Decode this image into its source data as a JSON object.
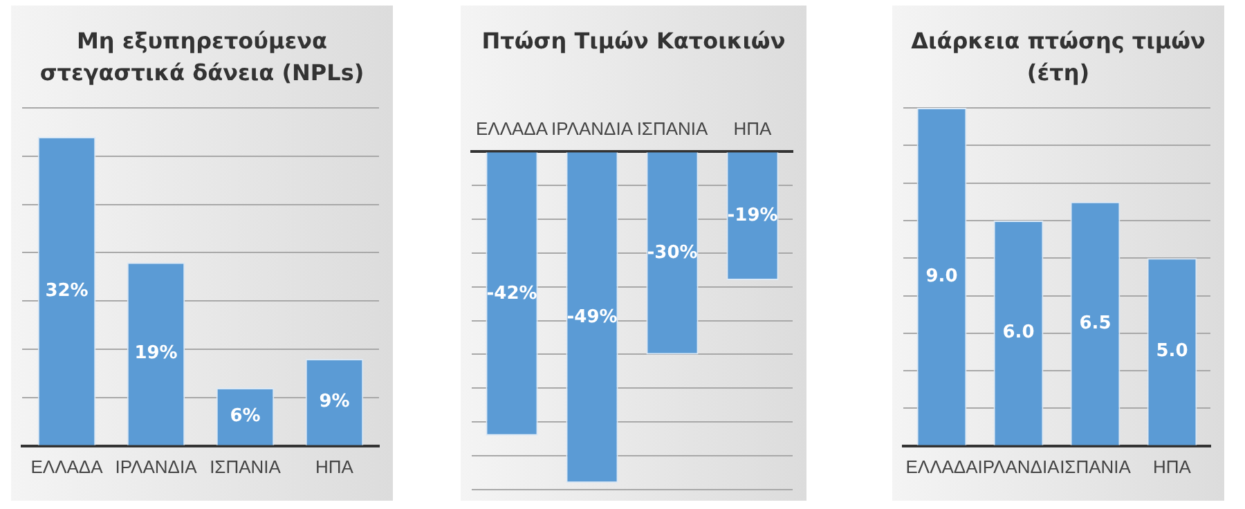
{
  "chart_data": [
    {
      "type": "bar",
      "title": "Μη εξυπηρετούμενα στεγαστικά δάνεια (NPLs)",
      "categories": [
        "ΕΛΛΑΔΑ",
        "ΙΡΛΑΝΔΙΑ",
        "ΙΣΠΑΝΙΑ",
        "ΗΠΑ"
      ],
      "values": [
        32,
        19,
        6,
        9
      ],
      "value_labels": [
        "32%",
        "19%",
        "6%",
        "9%"
      ],
      "color": "#5b9bd5",
      "grid": "y",
      "tick_labels": "x",
      "legend": false
    },
    {
      "type": "bar",
      "title": "Πτώση Τιμών Κατοικιών",
      "categories": [
        "ΕΛΛΑΔΑ",
        "ΙΡΛΑΝΔΙΑ",
        "ΙΣΠΑΝΙΑ",
        "ΗΠΑ"
      ],
      "values": [
        -42,
        -49,
        -30,
        -19
      ],
      "value_labels": [
        "-42%",
        "-49%",
        "-30%",
        "-19%"
      ],
      "color": "#5b9bd5",
      "grid": "y",
      "tick_labels": "x",
      "legend": false
    },
    {
      "type": "bar",
      "title": "Διάρκεια πτώσης τιμών (έτη)",
      "categories": [
        "ΕΛΛΑΔΑ",
        "ΙΡΛΑΝΔΙΑ",
        "ΙΣΠΑΝΙΑ",
        "ΗΠΑ"
      ],
      "values": [
        9,
        6,
        6.5,
        5
      ],
      "value_labels": [
        "9.0",
        "6.0",
        "6.5",
        "5.0"
      ],
      "color": "#5b9bd5",
      "grid": "y",
      "tick_labels": "x",
      "legend": false
    }
  ]
}
